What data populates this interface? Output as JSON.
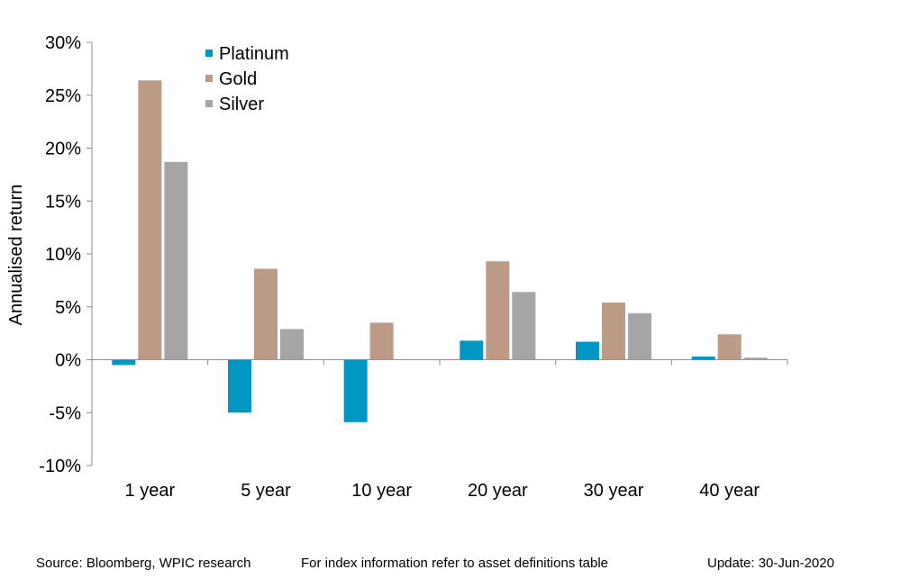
{
  "chart_data": {
    "type": "bar",
    "title": "",
    "xlabel": "",
    "ylabel": "Annualised return",
    "categories": [
      "1 year",
      "5 year",
      "10 year",
      "20 year",
      "30 year",
      "40 year"
    ],
    "series": [
      {
        "name": "Platinum",
        "color": "#0096C4",
        "values": [
          -0.5,
          -5.0,
          -5.9,
          1.8,
          1.7,
          0.3
        ]
      },
      {
        "name": "Gold",
        "color": "#BC9A86",
        "values": [
          26.4,
          8.6,
          3.5,
          9.3,
          5.4,
          2.4
        ]
      },
      {
        "name": "Silver",
        "color": "#A6A6A6",
        "values": [
          18.7,
          2.9,
          0.0,
          6.4,
          4.4,
          0.2
        ]
      }
    ],
    "ylim": [
      -10,
      30
    ],
    "yticks": [
      -10,
      -5,
      0,
      5,
      10,
      15,
      20,
      25,
      30
    ],
    "ytick_labels": [
      "-10%",
      "-5%",
      "0%",
      "5%",
      "10%",
      "15%",
      "20%",
      "25%",
      "30%"
    ],
    "legend_position": "top-left",
    "grid": false
  },
  "footer": {
    "source": "Source: Bloomberg, WPIC research",
    "note": "For index information refer to asset definitions table",
    "update": "Update: 30-Jun-2020"
  }
}
